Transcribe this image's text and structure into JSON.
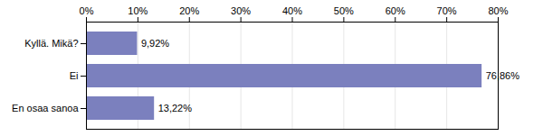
{
  "chart_data": {
    "type": "bar",
    "orientation": "horizontal",
    "categories": [
      "Kyllä. Mikä?",
      "Ei",
      "En osaa sanoa"
    ],
    "values": [
      9.92,
      76.86,
      13.22
    ],
    "value_labels": [
      "9,92%",
      "76,86%",
      "13,22%"
    ],
    "data_labels": true,
    "color": "#7b80be",
    "xlim": [
      0,
      80
    ],
    "xticks": [
      {
        "value": 0,
        "label": "0%"
      },
      {
        "value": 10,
        "label": "10%"
      },
      {
        "value": 20,
        "label": "20%"
      },
      {
        "value": 30,
        "label": "30%"
      },
      {
        "value": 40,
        "label": "40%"
      },
      {
        "value": 50,
        "label": "50%"
      },
      {
        "value": 60,
        "label": "60%"
      },
      {
        "value": 70,
        "label": "70%"
      },
      {
        "value": 80,
        "label": "80%"
      }
    ],
    "grid": true
  }
}
